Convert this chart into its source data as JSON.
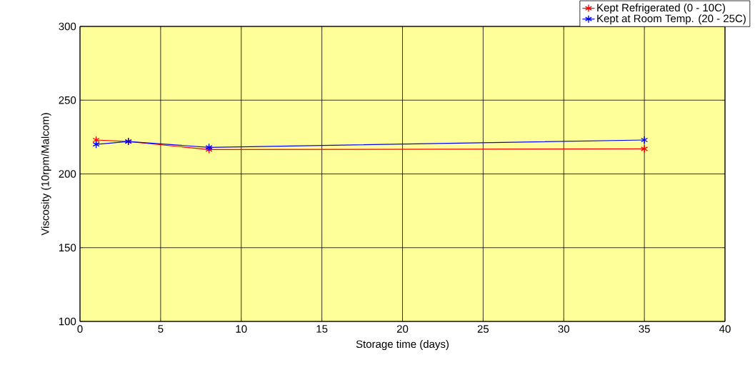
{
  "chart_data": {
    "type": "line",
    "xlabel": "Storage time (days)",
    "ylabel": "Viscosity (10rpm/Malcom)",
    "x": [
      1,
      3,
      8,
      35
    ],
    "series": [
      {
        "name": "Kept Refrigerated (0 - 10C)",
        "color": "#ff0000",
        "values": [
          223,
          222,
          216.5,
          217
        ]
      },
      {
        "name": "Kept at Room Temp. (20 - 25C)",
        "color": "#0000ff",
        "values": [
          220,
          222,
          218,
          223
        ]
      }
    ],
    "xlim": [
      0,
      40
    ],
    "xticks": [
      0,
      5,
      10,
      15,
      20,
      25,
      30,
      35,
      40
    ],
    "ylim": [
      100,
      300
    ],
    "yticks": [
      100,
      150,
      200,
      250,
      300
    ],
    "grid": true,
    "legend": "top right",
    "marker": "cross",
    "line_style": "solid"
  }
}
